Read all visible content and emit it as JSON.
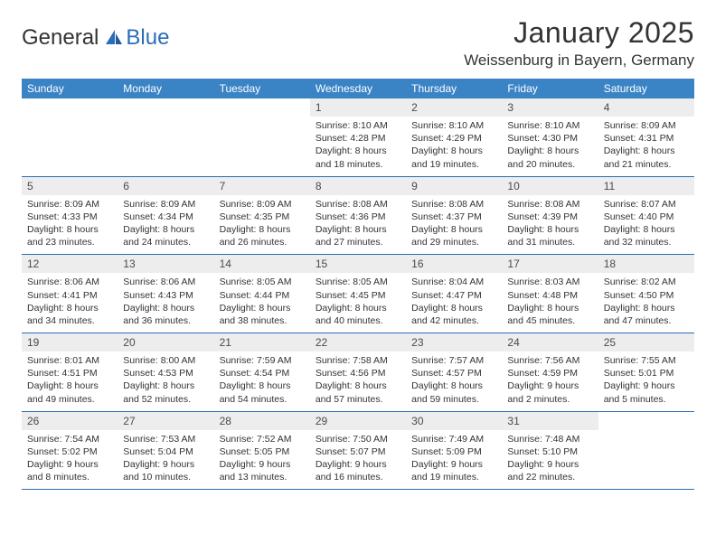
{
  "logo": {
    "part1": "General",
    "part2": "Blue"
  },
  "title": "January 2025",
  "location": "Weissenburg in Bayern, Germany",
  "colors": {
    "header_bg": "#3a84c6",
    "header_text": "#ffffff",
    "daynum_bg": "#ededed",
    "rule": "#2a6db8",
    "text": "#333333"
  },
  "day_labels": [
    "Sunday",
    "Monday",
    "Tuesday",
    "Wednesday",
    "Thursday",
    "Friday",
    "Saturday"
  ],
  "weeks": [
    [
      null,
      null,
      null,
      {
        "n": "1",
        "sr": "8:10 AM",
        "ss": "4:28 PM",
        "dl": "8 hours and 18 minutes."
      },
      {
        "n": "2",
        "sr": "8:10 AM",
        "ss": "4:29 PM",
        "dl": "8 hours and 19 minutes."
      },
      {
        "n": "3",
        "sr": "8:10 AM",
        "ss": "4:30 PM",
        "dl": "8 hours and 20 minutes."
      },
      {
        "n": "4",
        "sr": "8:09 AM",
        "ss": "4:31 PM",
        "dl": "8 hours and 21 minutes."
      }
    ],
    [
      {
        "n": "5",
        "sr": "8:09 AM",
        "ss": "4:33 PM",
        "dl": "8 hours and 23 minutes."
      },
      {
        "n": "6",
        "sr": "8:09 AM",
        "ss": "4:34 PM",
        "dl": "8 hours and 24 minutes."
      },
      {
        "n": "7",
        "sr": "8:09 AM",
        "ss": "4:35 PM",
        "dl": "8 hours and 26 minutes."
      },
      {
        "n": "8",
        "sr": "8:08 AM",
        "ss": "4:36 PM",
        "dl": "8 hours and 27 minutes."
      },
      {
        "n": "9",
        "sr": "8:08 AM",
        "ss": "4:37 PM",
        "dl": "8 hours and 29 minutes."
      },
      {
        "n": "10",
        "sr": "8:08 AM",
        "ss": "4:39 PM",
        "dl": "8 hours and 31 minutes."
      },
      {
        "n": "11",
        "sr": "8:07 AM",
        "ss": "4:40 PM",
        "dl": "8 hours and 32 minutes."
      }
    ],
    [
      {
        "n": "12",
        "sr": "8:06 AM",
        "ss": "4:41 PM",
        "dl": "8 hours and 34 minutes."
      },
      {
        "n": "13",
        "sr": "8:06 AM",
        "ss": "4:43 PM",
        "dl": "8 hours and 36 minutes."
      },
      {
        "n": "14",
        "sr": "8:05 AM",
        "ss": "4:44 PM",
        "dl": "8 hours and 38 minutes."
      },
      {
        "n": "15",
        "sr": "8:05 AM",
        "ss": "4:45 PM",
        "dl": "8 hours and 40 minutes."
      },
      {
        "n": "16",
        "sr": "8:04 AM",
        "ss": "4:47 PM",
        "dl": "8 hours and 42 minutes."
      },
      {
        "n": "17",
        "sr": "8:03 AM",
        "ss": "4:48 PM",
        "dl": "8 hours and 45 minutes."
      },
      {
        "n": "18",
        "sr": "8:02 AM",
        "ss": "4:50 PM",
        "dl": "8 hours and 47 minutes."
      }
    ],
    [
      {
        "n": "19",
        "sr": "8:01 AM",
        "ss": "4:51 PM",
        "dl": "8 hours and 49 minutes."
      },
      {
        "n": "20",
        "sr": "8:00 AM",
        "ss": "4:53 PM",
        "dl": "8 hours and 52 minutes."
      },
      {
        "n": "21",
        "sr": "7:59 AM",
        "ss": "4:54 PM",
        "dl": "8 hours and 54 minutes."
      },
      {
        "n": "22",
        "sr": "7:58 AM",
        "ss": "4:56 PM",
        "dl": "8 hours and 57 minutes."
      },
      {
        "n": "23",
        "sr": "7:57 AM",
        "ss": "4:57 PM",
        "dl": "8 hours and 59 minutes."
      },
      {
        "n": "24",
        "sr": "7:56 AM",
        "ss": "4:59 PM",
        "dl": "9 hours and 2 minutes."
      },
      {
        "n": "25",
        "sr": "7:55 AM",
        "ss": "5:01 PM",
        "dl": "9 hours and 5 minutes."
      }
    ],
    [
      {
        "n": "26",
        "sr": "7:54 AM",
        "ss": "5:02 PM",
        "dl": "9 hours and 8 minutes."
      },
      {
        "n": "27",
        "sr": "7:53 AM",
        "ss": "5:04 PM",
        "dl": "9 hours and 10 minutes."
      },
      {
        "n": "28",
        "sr": "7:52 AM",
        "ss": "5:05 PM",
        "dl": "9 hours and 13 minutes."
      },
      {
        "n": "29",
        "sr": "7:50 AM",
        "ss": "5:07 PM",
        "dl": "9 hours and 16 minutes."
      },
      {
        "n": "30",
        "sr": "7:49 AM",
        "ss": "5:09 PM",
        "dl": "9 hours and 19 minutes."
      },
      {
        "n": "31",
        "sr": "7:48 AM",
        "ss": "5:10 PM",
        "dl": "9 hours and 22 minutes."
      },
      null
    ]
  ],
  "labels": {
    "sunrise": "Sunrise:",
    "sunset": "Sunset:",
    "daylight": "Daylight:"
  }
}
